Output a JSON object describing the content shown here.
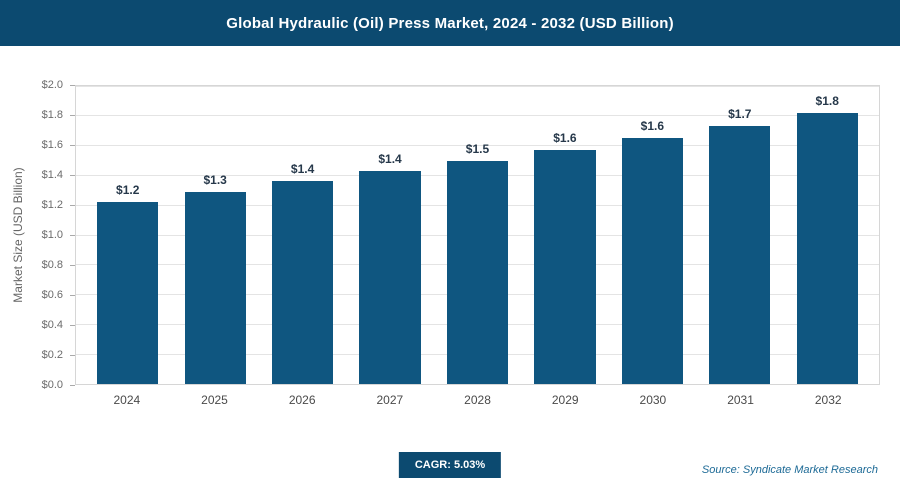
{
  "header": {
    "title": "Global Hydraulic (Oil) Press Market, 2024 - 2032 (USD Billion)"
  },
  "colors": {
    "header_bg": "#0c4a70",
    "bar": "#0f5680",
    "badge_bg": "#0c4a70"
  },
  "chart_data": {
    "type": "bar",
    "title": "Global Hydraulic (Oil) Press Market, 2024 - 2032 (USD Billion)",
    "categories": [
      "2024",
      "2025",
      "2026",
      "2027",
      "2028",
      "2029",
      "2030",
      "2031",
      "2032"
    ],
    "values": [
      1.22,
      1.29,
      1.36,
      1.43,
      1.5,
      1.57,
      1.65,
      1.73,
      1.82
    ],
    "bar_labels": [
      "$1.2",
      "$1.3",
      "$1.4",
      "$1.4",
      "$1.5",
      "$1.6",
      "$1.6",
      "$1.7",
      "$1.8"
    ],
    "xlabel": "",
    "ylabel": "Market Size (USD Billion)",
    "ylim": [
      0,
      2.0
    ],
    "ytick_step": 0.2,
    "ytick_labels": [
      "$0.0",
      "$0.2",
      "$0.4",
      "$0.6",
      "$0.8",
      "$1.0",
      "$1.2",
      "$1.4",
      "$1.6",
      "$1.8",
      "$2.0"
    ],
    "grid": true,
    "legend": "none"
  },
  "footer": {
    "cagr_label": "CAGR: 5.03%",
    "source": "Source: Syndicate Market Research"
  }
}
